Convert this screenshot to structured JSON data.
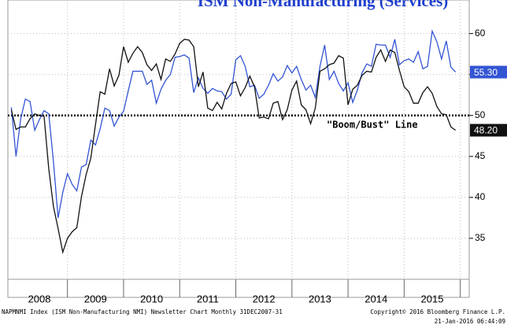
{
  "chart_data": {
    "type": "line",
    "title": "ISM Non-Manufacturing (Services)",
    "categories": [
      null,
      null,
      null,
      null,
      null,
      null,
      "2008",
      null,
      null,
      null,
      null,
      null,
      null,
      null,
      null,
      null,
      null,
      null,
      "2009",
      null,
      null,
      null,
      null,
      null,
      null,
      null,
      null,
      null,
      null,
      null,
      "2010",
      null,
      null,
      null,
      null,
      null,
      null,
      null,
      null,
      null,
      null,
      null,
      "2011",
      null,
      null,
      null,
      null,
      null,
      null,
      null,
      null,
      null,
      null,
      null,
      "2012",
      null,
      null,
      null,
      null,
      null,
      null,
      null,
      null,
      null,
      null,
      null,
      "2013",
      null,
      null,
      null,
      null,
      null,
      null,
      null,
      null,
      null,
      null,
      null,
      "2014",
      null,
      null,
      null,
      null,
      null,
      null,
      null,
      null,
      null,
      null,
      null,
      "2015",
      null,
      null,
      null,
      null,
      null
    ],
    "series": [
      {
        "color": "#3355d4",
        "values": [
          51.0,
          45.0,
          49.6,
          52.0,
          51.7,
          48.2,
          49.5,
          50.6,
          50.2,
          44.4,
          37.5,
          40.6,
          42.9,
          41.6,
          40.8,
          43.7,
          44.0,
          47.0,
          46.4,
          48.4,
          50.9,
          50.6,
          48.7,
          49.8,
          50.5,
          53.0,
          55.4,
          55.4,
          55.4,
          53.8,
          54.3,
          51.5,
          53.2,
          54.3,
          55.0,
          57.1,
          57.2,
          57.4,
          57.0,
          52.8,
          54.6,
          53.3,
          52.7,
          53.3,
          53.0,
          52.9,
          52.0,
          52.6,
          56.8,
          57.3,
          56.0,
          53.5,
          53.7,
          52.1,
          52.6,
          53.7,
          55.1,
          54.2,
          54.7,
          56.1,
          55.2,
          56.0,
          54.4,
          53.1,
          53.7,
          52.2,
          56.0,
          58.6,
          54.4,
          55.4,
          53.9,
          53.0,
          54.0,
          51.6,
          53.1,
          55.2,
          56.3,
          56.0,
          58.7,
          58.6,
          58.6,
          57.1,
          59.3,
          56.2,
          56.7,
          56.9,
          56.5,
          57.8,
          55.7,
          56.0,
          60.3,
          59.0,
          56.9,
          59.1,
          55.9,
          55.3
        ],
        "value_labels": [
          null,
          null,
          null,
          null,
          null,
          null,
          null,
          null,
          null,
          null,
          null,
          null,
          null,
          null,
          null,
          null,
          null,
          null,
          null,
          null,
          null,
          null,
          null,
          null,
          null,
          null,
          null,
          null,
          null,
          null,
          null,
          null,
          null,
          null,
          null,
          null,
          null,
          null,
          null,
          null,
          null,
          null,
          null,
          null,
          null,
          null,
          null,
          null,
          null,
          null,
          null,
          null,
          null,
          null,
          null,
          null,
          null,
          null,
          null,
          null,
          null,
          null,
          null,
          null,
          null,
          null,
          null,
          null,
          null,
          null,
          null,
          null,
          null,
          null,
          null,
          null,
          null,
          null,
          null,
          null,
          null,
          null,
          null,
          null,
          null,
          null,
          null,
          null,
          null,
          null,
          null,
          null,
          null,
          null,
          null,
          "55.30"
        ]
      },
      {
        "color": "#111111",
        "values": [
          50.7,
          48.3,
          48.6,
          48.6,
          49.6,
          50.2,
          50.0,
          49.9,
          43.5,
          38.9,
          36.2,
          33.3,
          35.0,
          35.8,
          36.3,
          40.1,
          42.8,
          44.8,
          48.9,
          52.9,
          52.6,
          55.7,
          53.6,
          54.9,
          58.4,
          56.5,
          57.6,
          58.4,
          57.7,
          56.2,
          55.5,
          56.3,
          54.4,
          56.9,
          56.6,
          57.5,
          58.8,
          59.3,
          59.2,
          58.4,
          53.5,
          55.3,
          50.9,
          50.6,
          51.6,
          50.8,
          52.7,
          53.9,
          54.1,
          52.4,
          53.4,
          54.8,
          53.5,
          49.7,
          49.8,
          49.6,
          51.5,
          51.7,
          49.5,
          50.7,
          53.1,
          54.2,
          51.3,
          50.7,
          49.0,
          50.9,
          55.4,
          55.7,
          56.2,
          56.4,
          57.3,
          57.0,
          51.3,
          53.2,
          53.7,
          54.9,
          55.4,
          55.3,
          57.1,
          58.0,
          56.6,
          58.0,
          57.7,
          55.5,
          53.5,
          52.9,
          51.5,
          51.5,
          52.8,
          53.5,
          52.7,
          51.1,
          50.2,
          50.1,
          48.6,
          48.2
        ],
        "value_labels": [
          null,
          null,
          null,
          null,
          null,
          null,
          null,
          null,
          null,
          null,
          null,
          null,
          null,
          null,
          null,
          null,
          null,
          null,
          null,
          null,
          null,
          null,
          null,
          null,
          null,
          null,
          null,
          null,
          null,
          null,
          null,
          null,
          null,
          null,
          null,
          null,
          null,
          null,
          null,
          null,
          null,
          null,
          null,
          null,
          null,
          null,
          null,
          null,
          null,
          null,
          null,
          null,
          null,
          null,
          null,
          null,
          null,
          null,
          null,
          null,
          null,
          null,
          null,
          null,
          null,
          null,
          null,
          null,
          null,
          null,
          null,
          null,
          null,
          null,
          null,
          null,
          null,
          null,
          null,
          null,
          null,
          null,
          null,
          null,
          null,
          null,
          null,
          null,
          null,
          null,
          null,
          null,
          null,
          null,
          null,
          "48.20"
        ]
      }
    ],
    "ylim": [
      30,
      64.1
    ],
    "yticks": [
      35,
      40,
      45,
      50,
      55,
      60
    ],
    "grid": true,
    "reference_line": {
      "value": 50,
      "label": "\"Boom/Bust\" Line"
    },
    "footer_left": "NAPMNMI Index (ISM Non-Manufacturing NMI) Newsletter Chart Monthly 31DEC2007-31",
    "footer_right": [
      "Copyright© 2016 Bloomberg Finance L.P.",
      "21-Jan-2016 06:44:09"
    ]
  }
}
